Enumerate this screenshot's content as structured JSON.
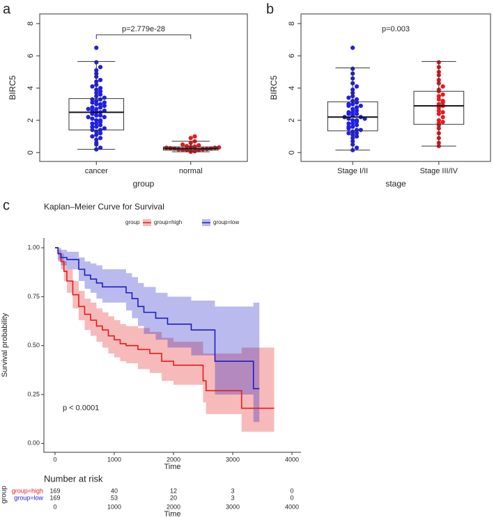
{
  "chart_data": [
    {
      "type": "box",
      "panel": "a",
      "y_label": "BIRC5",
      "x_label": "group",
      "annotation": "p=2.779e-28",
      "bracket": true,
      "ylim": [
        -0.55,
        8.6
      ],
      "yticks": [
        0,
        2,
        4,
        6,
        8
      ],
      "groups": [
        {
          "name": "cancer",
          "color": "#1f1fe0",
          "values": [
            0.2,
            0.3,
            0.5,
            0.6,
            0.8,
            0.9,
            1.0,
            1.1,
            1.2,
            1.3,
            1.4,
            1.4,
            1.5,
            1.6,
            1.7,
            1.8,
            1.9,
            2.0,
            2.0,
            2.1,
            2.2,
            2.3,
            2.3,
            2.4,
            2.5,
            2.5,
            2.6,
            2.6,
            2.7,
            2.8,
            2.8,
            2.9,
            3.0,
            3.0,
            3.1,
            3.2,
            3.3,
            3.3,
            3.4,
            3.5,
            3.6,
            3.7,
            3.8,
            3.9,
            4.0,
            4.1,
            4.2,
            4.4,
            4.5,
            4.7,
            4.9,
            5.1,
            5.3,
            5.6,
            6.5,
            1.6,
            2.2,
            2.7,
            3.1,
            1.8
          ],
          "box": {
            "whisker_low": 0.2,
            "q1": 1.4,
            "median": 2.5,
            "q3": 3.35,
            "whisker_high": 5.65
          }
        },
        {
          "name": "normal",
          "color": "#e61a1e",
          "values": [
            0.05,
            0.08,
            0.1,
            0.12,
            0.15,
            0.15,
            0.18,
            0.2,
            0.2,
            0.22,
            0.25,
            0.25,
            0.27,
            0.3,
            0.3,
            0.32,
            0.35,
            0.38,
            0.4,
            0.45,
            0.5,
            0.6,
            0.7,
            0.9,
            1.0
          ],
          "box": {
            "whisker_low": 0.05,
            "q1": 0.15,
            "median": 0.25,
            "q3": 0.35,
            "whisker_high": 0.7
          }
        }
      ]
    },
    {
      "type": "box",
      "panel": "b",
      "y_label": "BIRC5",
      "x_label": "stage",
      "annotation": "p=0.003",
      "bracket": false,
      "ylim": [
        -0.55,
        8.6
      ],
      "yticks": [
        0,
        2,
        4,
        6,
        8
      ],
      "groups": [
        {
          "name": "Stage I/II",
          "color": "#1f1fe0",
          "values": [
            0.15,
            0.3,
            0.5,
            0.7,
            0.9,
            1.0,
            1.1,
            1.2,
            1.3,
            1.4,
            1.5,
            1.6,
            1.7,
            1.8,
            1.9,
            2.0,
            2.0,
            2.1,
            2.2,
            2.2,
            2.3,
            2.4,
            2.5,
            2.6,
            2.7,
            2.8,
            2.9,
            3.0,
            3.1,
            3.2,
            3.3,
            3.4,
            3.5,
            3.7,
            3.9,
            4.1,
            4.3,
            4.6,
            4.9,
            5.2,
            6.5,
            1.4,
            1.8,
            2.5,
            2.9,
            1.6,
            2.1,
            2.4,
            3.0,
            1.2
          ],
          "box": {
            "whisker_low": 0.15,
            "q1": 1.35,
            "median": 2.2,
            "q3": 3.15,
            "whisker_high": 5.25
          }
        },
        {
          "name": "Stage III/IV",
          "color": "#e61a1e",
          "values": [
            0.4,
            0.6,
            0.9,
            1.2,
            1.5,
            1.7,
            1.8,
            2.0,
            2.2,
            2.4,
            2.6,
            2.8,
            2.9,
            3.0,
            3.1,
            3.3,
            3.5,
            3.6,
            3.8,
            3.9,
            4.1,
            4.3,
            4.5,
            4.8,
            5.0,
            5.3,
            5.6,
            2.5,
            3.2,
            1.9
          ],
          "box": {
            "whisker_low": 0.4,
            "q1": 1.75,
            "median": 2.9,
            "q3": 3.8,
            "whisker_high": 5.65
          }
        }
      ]
    },
    {
      "type": "survival",
      "panel": "c",
      "title": "Kaplan–Meier Curve for Survival",
      "x_label": "Time",
      "y_label": "Survival probability",
      "legend_title": "group",
      "legend": "top",
      "annotation": "p < 0.0001",
      "xlim": [
        -188,
        4153
      ],
      "xticks": [
        0,
        1000,
        2000,
        3000,
        4000
      ],
      "ylim": [
        -0.045,
        1.05
      ],
      "yticks": [
        {
          "value": 0,
          "label": "0.00"
        },
        0.25,
        {
          "value": 0.5,
          "label": "0.50"
        },
        0.75,
        {
          "value": 1,
          "label": "1.00"
        }
      ],
      "risk_title": "Number at risk",
      "risk_ylabel": "group",
      "series": [
        {
          "name": "group=high",
          "color": "#e41a1c",
          "x": [
            0,
            50,
            100,
            150,
            200,
            300,
            400,
            500,
            600,
            700,
            800,
            900,
            1000,
            1100,
            1200,
            1400,
            1600,
            1800,
            2000,
            2200,
            2500,
            2550,
            3100,
            3150,
            3700
          ],
          "y": [
            1,
            0.97,
            0.93,
            0.88,
            0.83,
            0.76,
            0.7,
            0.66,
            0.63,
            0.6,
            0.58,
            0.55,
            0.53,
            0.51,
            0.5,
            0.48,
            0.46,
            0.42,
            0.4,
            0.4,
            0.32,
            0.27,
            0.27,
            0.18,
            0.18
          ],
          "lower": [
            1,
            0.94,
            0.89,
            0.83,
            0.77,
            0.69,
            0.63,
            0.58,
            0.55,
            0.52,
            0.49,
            0.46,
            0.44,
            0.42,
            0.41,
            0.38,
            0.36,
            0.32,
            0.3,
            0.3,
            0.21,
            0.15,
            0.15,
            0.06,
            0.06
          ],
          "upper": [
            1,
            0.99,
            0.97,
            0.93,
            0.89,
            0.83,
            0.78,
            0.74,
            0.72,
            0.69,
            0.67,
            0.65,
            0.63,
            0.61,
            0.6,
            0.59,
            0.57,
            0.54,
            0.52,
            0.52,
            0.46,
            0.46,
            0.46,
            0.49,
            0.49
          ],
          "at_risk": [
            169,
            40,
            12,
            3,
            0
          ]
        },
        {
          "name": "group=low",
          "color": "#1c1cc8",
          "x": [
            0,
            50,
            100,
            200,
            400,
            500,
            600,
            700,
            800,
            1000,
            1200,
            1300,
            1400,
            1500,
            1700,
            1900,
            2100,
            2300,
            2500,
            2700,
            3200,
            3350,
            3450
          ],
          "y": [
            1,
            0.97,
            0.95,
            0.94,
            0.89,
            0.86,
            0.84,
            0.82,
            0.8,
            0.8,
            0.77,
            0.74,
            0.7,
            0.67,
            0.64,
            0.61,
            0.61,
            0.58,
            0.58,
            0.42,
            0.42,
            0.28,
            0.28
          ],
          "lower": [
            1,
            0.93,
            0.91,
            0.89,
            0.83,
            0.79,
            0.77,
            0.74,
            0.72,
            0.72,
            0.68,
            0.64,
            0.6,
            0.56,
            0.53,
            0.49,
            0.49,
            0.45,
            0.45,
            0.25,
            0.25,
            0.11,
            0.11
          ],
          "upper": [
            1,
            1.0,
            0.99,
            0.98,
            0.95,
            0.93,
            0.92,
            0.91,
            0.89,
            0.89,
            0.87,
            0.85,
            0.82,
            0.8,
            0.77,
            0.75,
            0.75,
            0.73,
            0.73,
            0.7,
            0.7,
            0.72,
            0.72
          ],
          "at_risk": [
            169,
            53,
            20,
            3,
            0
          ]
        }
      ]
    }
  ]
}
